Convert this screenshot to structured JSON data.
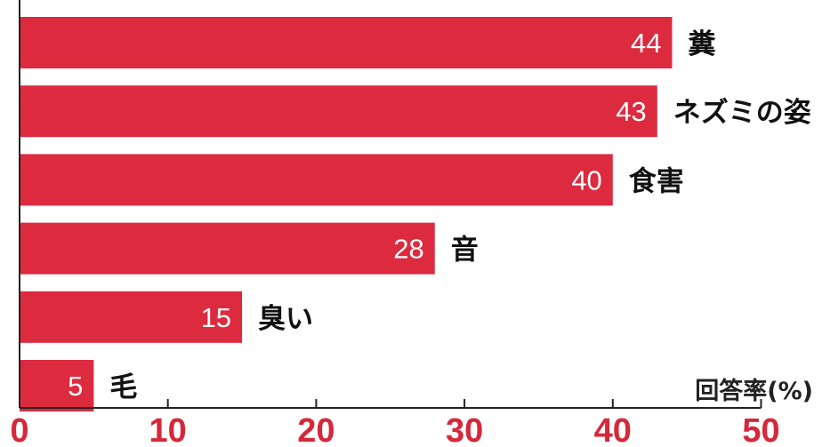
{
  "chart_data": {
    "type": "bar",
    "orientation": "horizontal",
    "categories": [
      "糞",
      "ネズミの姿",
      "食害",
      "音",
      "臭い",
      "毛"
    ],
    "values": [
      44,
      43,
      40,
      28,
      15,
      5
    ],
    "xlabel": "回答率(%)",
    "ylabel": "",
    "xlim": [
      0,
      50
    ],
    "xticks": [
      "0",
      "10",
      "20",
      "30",
      "40",
      "50"
    ],
    "grid": false,
    "legend": "none"
  },
  "colors": {
    "bar": "#dc2a3f",
    "tick_label": "#d6283b",
    "axis": "#222222",
    "category_text": "#111111",
    "value_text": "#ffffff"
  }
}
